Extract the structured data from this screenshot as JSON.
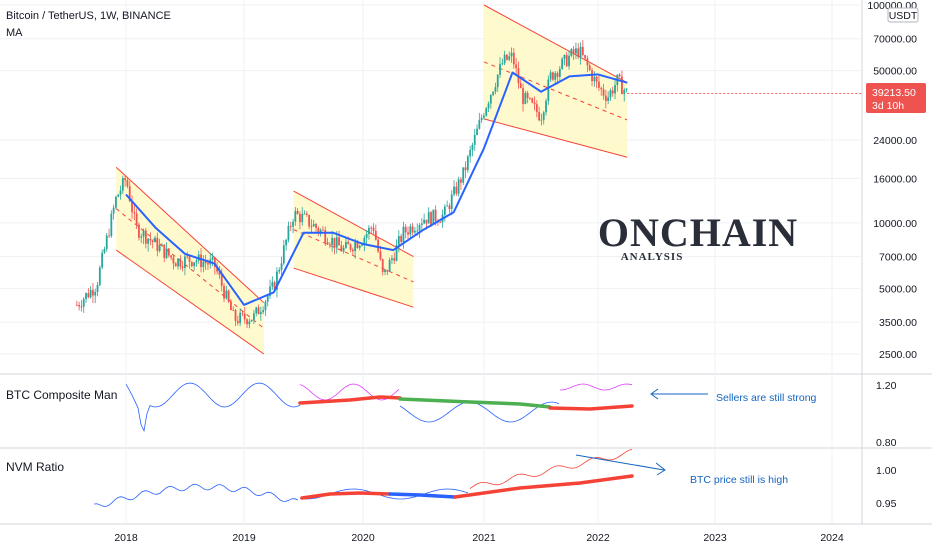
{
  "header": {
    "symbol_line": "Bitcoin / TetherUS, 1W, BINANCE",
    "indicator": "MA"
  },
  "price_axis": {
    "currency_tag": "USDT",
    "current_price": "39213.50",
    "countdown": "3d 10h"
  },
  "watermark": {
    "main": "ONCHAIN",
    "sub": "ANALYSIS"
  },
  "annotations": {
    "composite": "Sellers are still strong",
    "nvm": "BTC price still is high"
  },
  "colors": {
    "up": "#26a69a",
    "down": "#ef5350",
    "ma": "#2962ff",
    "channel_fill": "#fff9c4",
    "channel_line": "#f44336",
    "thin_purple": "#e040fb",
    "thick_red": "#f44336",
    "thick_green": "#4caf50",
    "thick_blue": "#2962ff",
    "note": "#1565c0",
    "price_badge": "#ef5350"
  },
  "chart_data": [
    {
      "type": "candlestick",
      "title": "Bitcoin / TetherUS, 1W, BINANCE",
      "scale": "log",
      "y_ticks": [
        2500,
        3500,
        5000,
        7000,
        10000,
        16000,
        24000,
        50000,
        70000,
        100000
      ],
      "x_ticks": [
        "2018",
        "2019",
        "2020",
        "2021",
        "2022",
        "2023",
        "2024"
      ],
      "current_price": 39213.5,
      "ma_line": [
        [
          "2018-01",
          13500
        ],
        [
          "2018-04",
          9500
        ],
        [
          "2018-07",
          7200
        ],
        [
          "2018-10",
          6500
        ],
        [
          "2019-01",
          4200
        ],
        [
          "2019-04",
          4800
        ],
        [
          "2019-07",
          9000
        ],
        [
          "2019-10",
          9000
        ],
        [
          "2020-01",
          8000
        ],
        [
          "2020-04",
          7500
        ],
        [
          "2020-07",
          9300
        ],
        [
          "2020-10",
          11200
        ],
        [
          "2021-01",
          22000
        ],
        [
          "2021-04",
          49000
        ],
        [
          "2021-07",
          40000
        ],
        [
          "2021-10",
          47000
        ],
        [
          "2022-01",
          48000
        ],
        [
          "2022-04",
          44000
        ]
      ],
      "channels": [
        {
          "start": "2017-12",
          "end": "2019-03",
          "upper": [
            18000,
            4300
          ],
          "lower": [
            7500,
            2500
          ]
        },
        {
          "start": "2019-06",
          "end": "2020-06",
          "upper": [
            14000,
            7000
          ],
          "lower": [
            6200,
            4100
          ]
        },
        {
          "start": "2021-01",
          "end": "2022-04",
          "upper": [
            100000,
            44000
          ],
          "lower": [
            30000,
            20000
          ]
        }
      ]
    },
    {
      "type": "line",
      "title": "BTC Composite Man",
      "y_ticks": [
        0.8,
        1.2
      ],
      "series": []
    },
    {
      "type": "line",
      "title": "NVM Ratio",
      "y_ticks": [
        0.95,
        1.0
      ],
      "series": []
    }
  ]
}
